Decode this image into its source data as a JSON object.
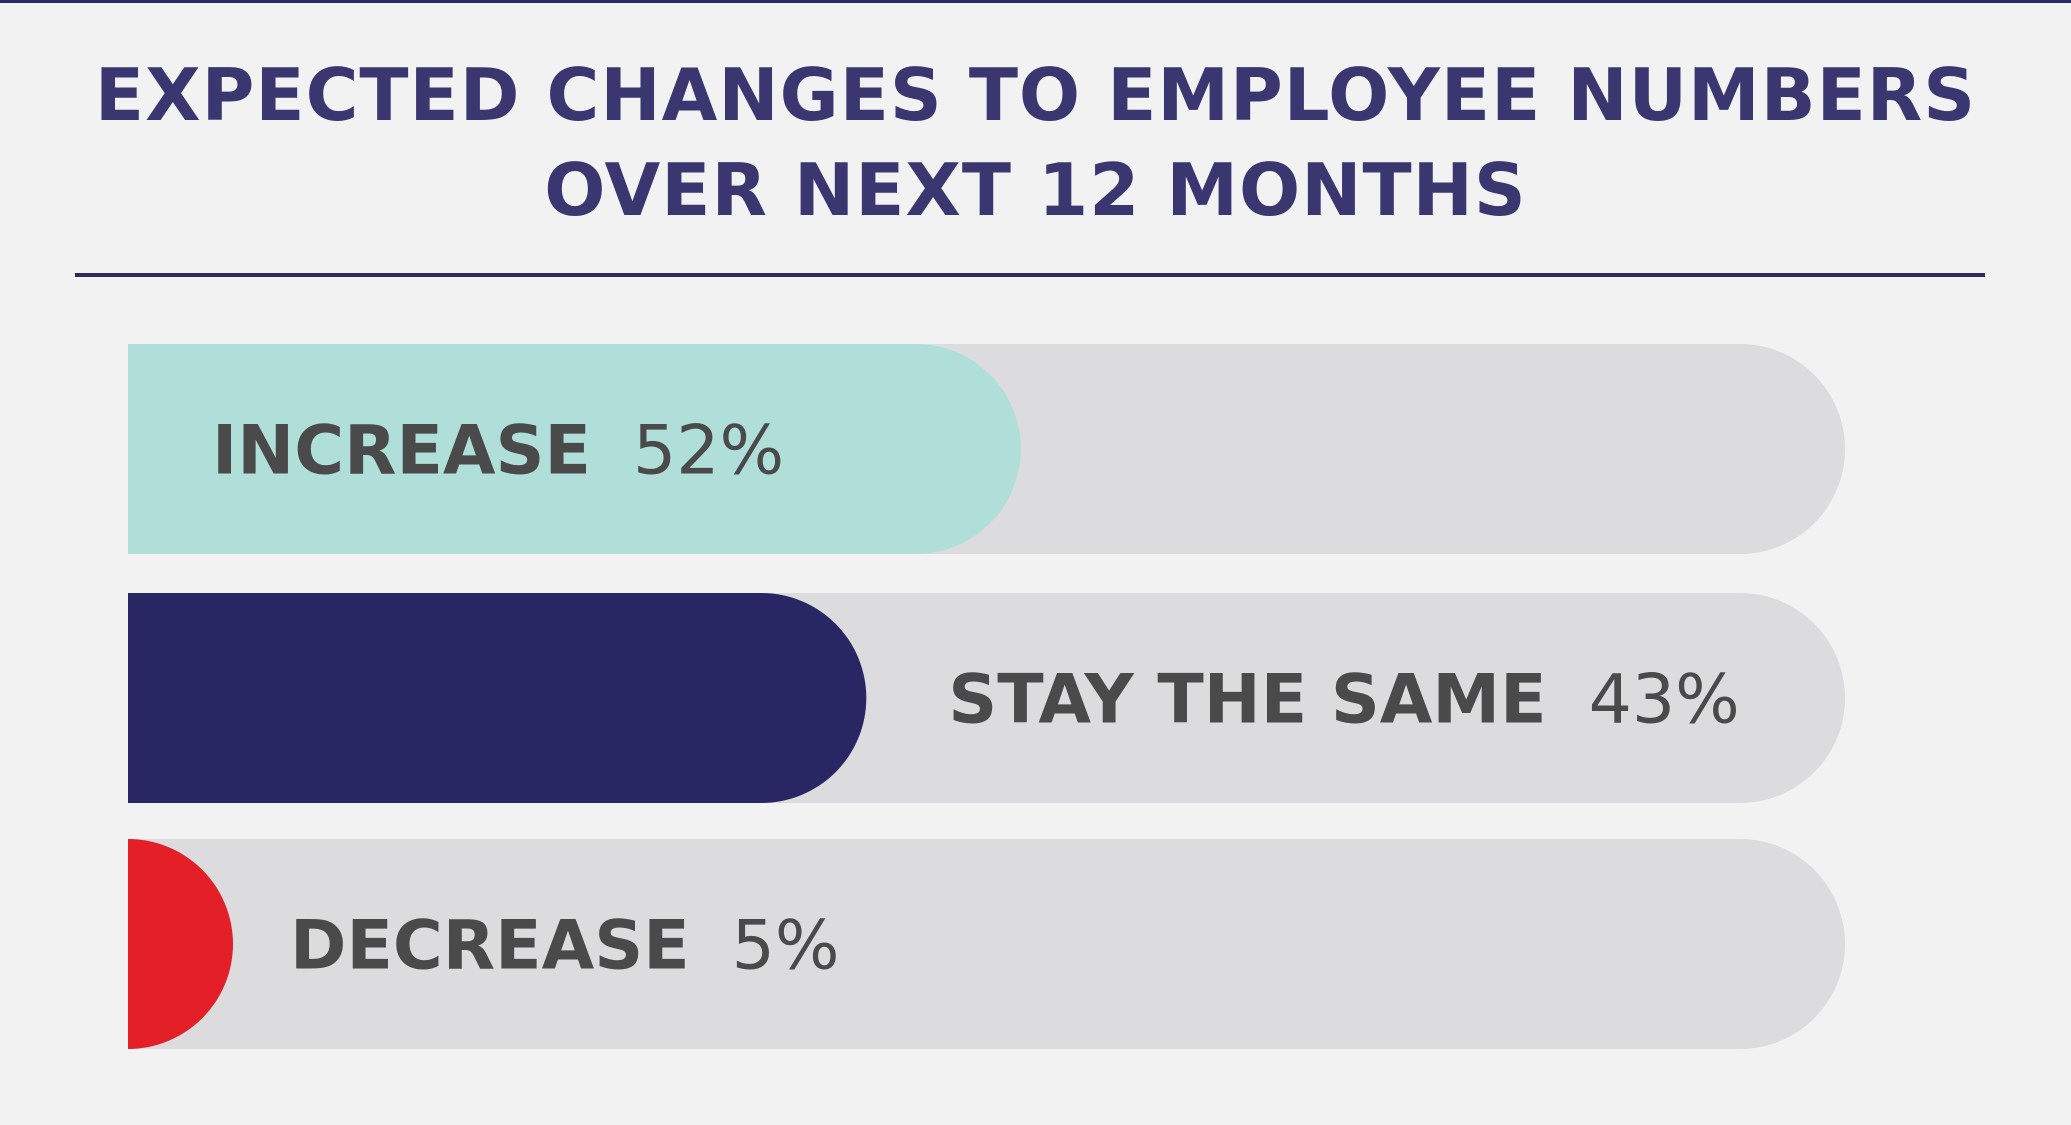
{
  "title": {
    "line1": "EXPECTED CHANGES TO EMPLOYEE NUMBERS",
    "line2": "OVER NEXT 12 MONTHS"
  },
  "chart_data": {
    "type": "bar",
    "orientation": "horizontal",
    "title": "EXPECTED CHANGES TO EMPLOYEE NUMBERS OVER NEXT 12 MONTHS",
    "categories": [
      "INCREASE",
      "STAY THE SAME",
      "DECREASE"
    ],
    "values": [
      52,
      43,
      5
    ],
    "value_labels": [
      "52%",
      "43%",
      "5%"
    ],
    "unit": "%",
    "xlim": [
      0,
      100
    ],
    "colors": [
      "#b0dfda",
      "#292763",
      "#e32028"
    ],
    "track_color": "#dcdcde",
    "label_color": "#4a4a4a",
    "grid": false,
    "legend": "none"
  }
}
